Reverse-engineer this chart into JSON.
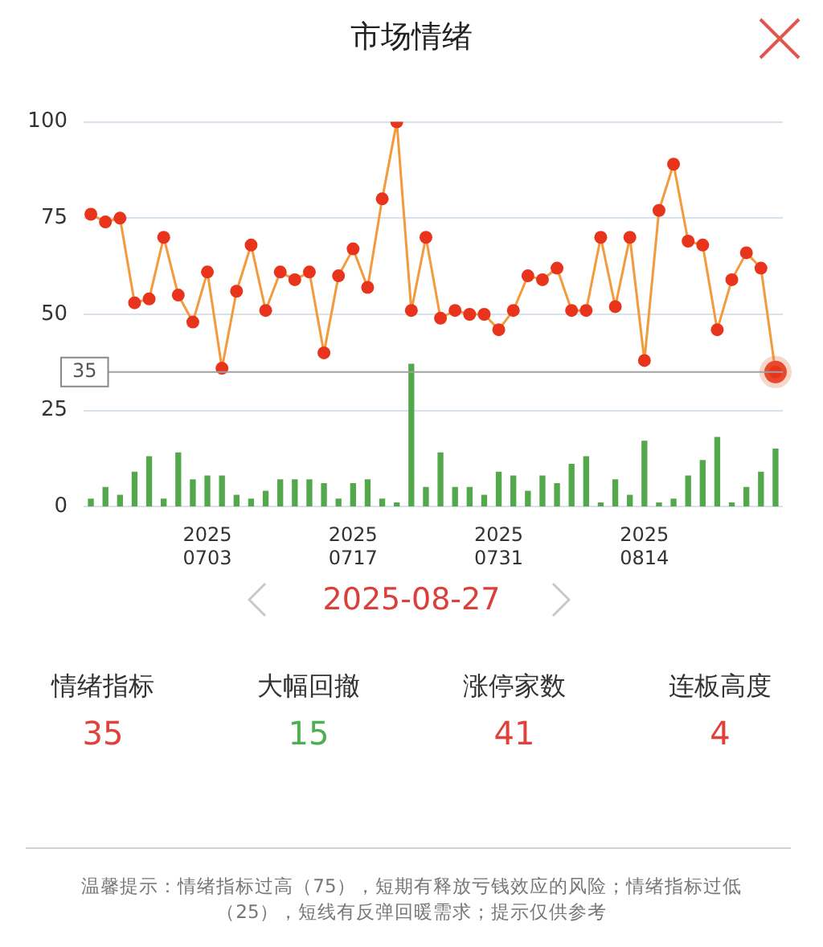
{
  "chart_data": {
    "type": "line",
    "title": "市场情绪",
    "subtitle": "2025-08-27",
    "categories": [
      null,
      null,
      null,
      null,
      null,
      null,
      null,
      null,
      "2025\n0703",
      null,
      null,
      null,
      null,
      null,
      null,
      null,
      null,
      null,
      "2025\n0717",
      null,
      null,
      null,
      null,
      null,
      null,
      null,
      null,
      null,
      "2025\n0731",
      null,
      null,
      null,
      null,
      null,
      null,
      null,
      null,
      null,
      "2025\n0814",
      null,
      null,
      null,
      null,
      null,
      null,
      null,
      null,
      null
    ],
    "series": [
      {
        "color": "#e8341c",
        "values": [
          76,
          74,
          75,
          53,
          54,
          70,
          55,
          48,
          61,
          36,
          56,
          68,
          51,
          61,
          59,
          61,
          40,
          60,
          67,
          57,
          80,
          100,
          51,
          70,
          49,
          51,
          50,
          50,
          46,
          51,
          60,
          59,
          62,
          51,
          51,
          70,
          52,
          70,
          38,
          77,
          89,
          69,
          68,
          46,
          59,
          66,
          62,
          35
        ]
      },
      {
        "type": "bar",
        "color": "#52a84a",
        "values": [
          2,
          5,
          3,
          9,
          13,
          2,
          14,
          7,
          8,
          8,
          3,
          2,
          4,
          7,
          7,
          7,
          6,
          2,
          6,
          7,
          2,
          1,
          37,
          5,
          14,
          5,
          5,
          3,
          9,
          8,
          4,
          8,
          6,
          11,
          13,
          1,
          7,
          3,
          17,
          1,
          2,
          8,
          12,
          18,
          1,
          5,
          9,
          15
        ]
      }
    ],
    "ylim": [
      0,
      100
    ],
    "yticks": [
      0,
      25,
      50,
      75,
      100
    ],
    "grid": "y",
    "marker": "circle",
    "legend": false,
    "ref_lines": [
      {
        "axis": "y",
        "value": 35,
        "label": "35"
      }
    ],
    "annotations": [
      "情绪指标",
      "35",
      "大幅回撤",
      "15",
      "涨停家数",
      "41",
      "连板高度",
      "4",
      "温馨提示：情绪指标过高（75），短期有释放亏钱效应的风险；情绪指标过低（25），短线有反弹回暖需求；提示仅供参考"
    ]
  }
}
